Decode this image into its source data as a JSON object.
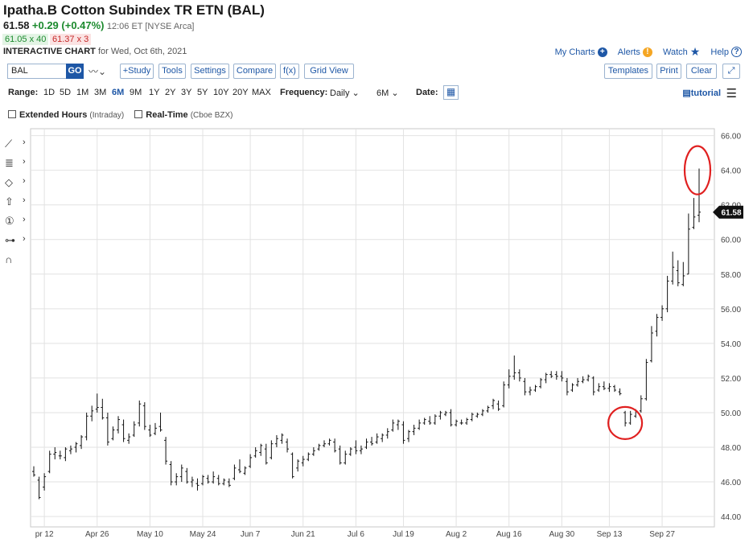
{
  "header": {
    "title": "Ipatha.B Cotton Subindex TR ETN (BAL)",
    "price": "61.58",
    "change": "+0.29 (+0.47%)",
    "time": "12:06 ET [NYSE Arca]",
    "bid": "61.05 x 40",
    "ask": "61.37 x 3",
    "interactive_label": "INTERACTIVE CHART",
    "interactive_date": "for Wed, Oct 6th, 2021"
  },
  "toplinks": {
    "my_charts": "My Charts",
    "alerts": "Alerts",
    "watch": "Watch",
    "help": "Help"
  },
  "toolbar": {
    "symbol": "BAL",
    "go": "GO",
    "study": "+Study",
    "tools": "Tools",
    "settings": "Settings",
    "compare": "Compare",
    "fx": "f(x)",
    "grid_view": "Grid View",
    "templates": "Templates",
    "print": "Print",
    "clear": "Clear"
  },
  "range": {
    "label": "Range:",
    "items": [
      "1D",
      "5D",
      "1M",
      "3M",
      "6M",
      "9M",
      "1Y",
      "2Y",
      "3Y",
      "5Y",
      "10Y",
      "20Y",
      "MAX"
    ],
    "active": "6M",
    "frequency_label": "Frequency:",
    "frequency": "Daily",
    "period": "6M",
    "date_label": "Date:",
    "tutorial": "tutorial"
  },
  "options": {
    "extended": "Extended Hours",
    "extended_note": "(Intraday)",
    "realtime": "Real-Time",
    "realtime_note": "(Cboe BZX)"
  },
  "colors": {
    "accent": "#1e57a6",
    "up": "#1c8a2e",
    "down": "#c62828",
    "annotation": "#e02020"
  },
  "chart_data": {
    "type": "ohlc",
    "ylim": [
      43.4,
      66.4
    ],
    "yticks": [
      "44.00",
      "46.00",
      "48.00",
      "50.00",
      "52.00",
      "54.00",
      "56.00",
      "58.00",
      "60.00",
      "62.00",
      "64.00",
      "66.00"
    ],
    "xticks": [
      "pr 12",
      "Apr 26",
      "May 10",
      "May 24",
      "Jun 7",
      "Jun 21",
      "Jul 6",
      "Jul 19",
      "Aug 2",
      "Aug 16",
      "Aug 30",
      "Sep 13",
      "Sep 27"
    ],
    "last_price": "61.58",
    "grid": true,
    "bars": [
      {
        "date": "Apr 8",
        "o": 46.6,
        "h": 46.9,
        "l": 46.3,
        "c": 46.4
      },
      {
        "date": "Apr 9",
        "o": 46.1,
        "h": 46.3,
        "l": 45.0,
        "c": 45.1
      },
      {
        "date": "Apr 12",
        "o": 45.7,
        "h": 46.5,
        "l": 45.5,
        "c": 46.3
      },
      {
        "date": "Apr 13",
        "o": 46.6,
        "h": 47.8,
        "l": 46.5,
        "c": 47.6
      },
      {
        "date": "Apr 14",
        "o": 47.6,
        "h": 48.0,
        "l": 47.3,
        "c": 47.7
      },
      {
        "date": "Apr 15",
        "o": 47.5,
        "h": 47.8,
        "l": 47.3,
        "c": 47.5
      },
      {
        "date": "Apr 16",
        "o": 47.4,
        "h": 48.0,
        "l": 47.2,
        "c": 47.9
      },
      {
        "date": "Apr 19",
        "o": 47.8,
        "h": 48.1,
        "l": 47.6,
        "c": 47.9
      },
      {
        "date": "Apr 20",
        "o": 48.0,
        "h": 48.3,
        "l": 47.7,
        "c": 48.2
      },
      {
        "date": "Apr 21",
        "o": 48.1,
        "h": 48.7,
        "l": 47.9,
        "c": 48.6
      },
      {
        "date": "Apr 22",
        "o": 48.6,
        "h": 50.0,
        "l": 48.4,
        "c": 49.8
      },
      {
        "date": "Apr 23",
        "o": 49.8,
        "h": 50.4,
        "l": 49.5,
        "c": 50.1
      },
      {
        "date": "Apr 26",
        "o": 50.2,
        "h": 51.1,
        "l": 50.0,
        "c": 50.3
      },
      {
        "date": "Apr 27",
        "o": 50.3,
        "h": 50.8,
        "l": 49.6,
        "c": 49.7
      },
      {
        "date": "Apr 28",
        "o": 49.7,
        "h": 50.0,
        "l": 48.1,
        "c": 48.3
      },
      {
        "date": "Apr 29",
        "o": 48.5,
        "h": 49.2,
        "l": 48.4,
        "c": 49.0
      },
      {
        "date": "Apr 30",
        "o": 49.0,
        "h": 49.8,
        "l": 48.8,
        "c": 49.6
      },
      {
        "date": "May 3",
        "o": 49.3,
        "h": 49.6,
        "l": 48.3,
        "c": 48.5
      },
      {
        "date": "May 4",
        "o": 48.4,
        "h": 48.8,
        "l": 48.2,
        "c": 48.6
      },
      {
        "date": "May 5",
        "o": 48.7,
        "h": 49.5,
        "l": 48.6,
        "c": 49.3
      },
      {
        "date": "May 6",
        "o": 49.4,
        "h": 50.7,
        "l": 49.2,
        "c": 50.5
      },
      {
        "date": "May 7",
        "o": 50.4,
        "h": 50.6,
        "l": 49.0,
        "c": 49.2
      },
      {
        "date": "May 10",
        "o": 49.0,
        "h": 49.3,
        "l": 48.6,
        "c": 48.7
      },
      {
        "date": "May 11",
        "o": 48.8,
        "h": 49.4,
        "l": 48.7,
        "c": 49.1
      },
      {
        "date": "May 12",
        "o": 49.2,
        "h": 50.0,
        "l": 48.9,
        "c": 49.0
      },
      {
        "date": "May 13",
        "o": 48.4,
        "h": 48.6,
        "l": 47.0,
        "c": 47.2
      },
      {
        "date": "May 14",
        "o": 47.0,
        "h": 47.2,
        "l": 45.8,
        "c": 46.0
      },
      {
        "date": "May 17",
        "o": 46.0,
        "h": 46.5,
        "l": 45.8,
        "c": 46.3
      },
      {
        "date": "May 18",
        "o": 46.3,
        "h": 47.0,
        "l": 46.0,
        "c": 46.8
      },
      {
        "date": "May 19",
        "o": 46.6,
        "h": 46.8,
        "l": 45.9,
        "c": 46.0
      },
      {
        "date": "May 20",
        "o": 46.0,
        "h": 46.3,
        "l": 45.7,
        "c": 46.1
      },
      {
        "date": "May 21",
        "o": 45.9,
        "h": 46.2,
        "l": 45.5,
        "c": 45.8
      },
      {
        "date": "May 24",
        "o": 45.9,
        "h": 46.4,
        "l": 45.8,
        "c": 46.3
      },
      {
        "date": "May 25",
        "o": 46.2,
        "h": 46.4,
        "l": 45.9,
        "c": 46.0
      },
      {
        "date": "May 26",
        "o": 46.0,
        "h": 46.6,
        "l": 45.9,
        "c": 46.3
      },
      {
        "date": "May 27",
        "o": 46.2,
        "h": 46.4,
        "l": 45.8,
        "c": 45.9
      },
      {
        "date": "May 28",
        "o": 45.9,
        "h": 46.2,
        "l": 45.8,
        "c": 46.1
      },
      {
        "date": "Jun 1",
        "o": 46.0,
        "h": 46.2,
        "l": 45.7,
        "c": 45.8
      },
      {
        "date": "Jun 2",
        "o": 46.2,
        "h": 47.0,
        "l": 46.1,
        "c": 46.8
      },
      {
        "date": "Jun 3",
        "o": 46.7,
        "h": 47.3,
        "l": 46.5,
        "c": 46.6
      },
      {
        "date": "Jun 4",
        "o": 46.5,
        "h": 46.9,
        "l": 46.4,
        "c": 46.8
      },
      {
        "date": "Jun 7",
        "o": 46.9,
        "h": 47.6,
        "l": 46.8,
        "c": 47.4
      },
      {
        "date": "Jun 8",
        "o": 47.5,
        "h": 48.0,
        "l": 47.4,
        "c": 47.8
      },
      {
        "date": "Jun 9",
        "o": 47.7,
        "h": 48.2,
        "l": 47.5,
        "c": 48.1
      },
      {
        "date": "Jun 10",
        "o": 47.9,
        "h": 48.2,
        "l": 47.0,
        "c": 47.1
      },
      {
        "date": "Jun 11",
        "o": 47.4,
        "h": 48.4,
        "l": 47.3,
        "c": 48.2
      },
      {
        "date": "Jun 14",
        "o": 48.2,
        "h": 48.7,
        "l": 48.0,
        "c": 48.5
      },
      {
        "date": "Jun 15",
        "o": 48.4,
        "h": 48.8,
        "l": 48.2,
        "c": 48.7
      },
      {
        "date": "Jun 16",
        "o": 48.3,
        "h": 48.5,
        "l": 47.7,
        "c": 47.9
      },
      {
        "date": "Jun 17",
        "o": 47.6,
        "h": 47.7,
        "l": 46.2,
        "c": 46.3
      },
      {
        "date": "Jun 18",
        "o": 46.8,
        "h": 47.3,
        "l": 46.6,
        "c": 47.2
      },
      {
        "date": "Jun 21",
        "o": 47.1,
        "h": 47.5,
        "l": 46.9,
        "c": 47.3
      },
      {
        "date": "Jun 22",
        "o": 47.3,
        "h": 47.7,
        "l": 47.2,
        "c": 47.6
      },
      {
        "date": "Jun 23",
        "o": 47.6,
        "h": 48.0,
        "l": 47.5,
        "c": 47.8
      },
      {
        "date": "Jun 24",
        "o": 47.9,
        "h": 48.2,
        "l": 47.8,
        "c": 48.1
      },
      {
        "date": "Jun 25",
        "o": 48.1,
        "h": 48.4,
        "l": 48.0,
        "c": 48.2
      },
      {
        "date": "Jun 28",
        "o": 48.2,
        "h": 48.5,
        "l": 48.1,
        "c": 48.4
      },
      {
        "date": "Jun 29",
        "o": 48.3,
        "h": 48.5,
        "l": 47.7,
        "c": 47.8
      },
      {
        "date": "Jun 30",
        "o": 47.9,
        "h": 48.1,
        "l": 47.0,
        "c": 47.1
      },
      {
        "date": "Jul 1",
        "o": 47.1,
        "h": 47.8,
        "l": 47.0,
        "c": 47.6
      },
      {
        "date": "Jul 2",
        "o": 47.6,
        "h": 48.0,
        "l": 47.5,
        "c": 47.9
      },
      {
        "date": "Jul 6",
        "o": 48.0,
        "h": 48.4,
        "l": 47.6,
        "c": 47.8
      },
      {
        "date": "Jul 7",
        "o": 47.8,
        "h": 48.1,
        "l": 47.6,
        "c": 47.9
      },
      {
        "date": "Jul 8",
        "o": 48.0,
        "h": 48.5,
        "l": 47.9,
        "c": 48.3
      },
      {
        "date": "Jul 9",
        "o": 48.3,
        "h": 48.6,
        "l": 48.1,
        "c": 48.2
      },
      {
        "date": "Jul 12",
        "o": 48.3,
        "h": 48.8,
        "l": 48.2,
        "c": 48.6
      },
      {
        "date": "Jul 13",
        "o": 48.5,
        "h": 48.8,
        "l": 48.3,
        "c": 48.7
      },
      {
        "date": "Jul 14",
        "o": 48.7,
        "h": 49.1,
        "l": 48.5,
        "c": 48.9
      },
      {
        "date": "Jul 15",
        "o": 49.0,
        "h": 49.6,
        "l": 48.9,
        "c": 49.4
      },
      {
        "date": "Jul 16",
        "o": 49.3,
        "h": 49.6,
        "l": 49.0,
        "c": 49.5
      },
      {
        "date": "Jul 19",
        "o": 49.3,
        "h": 49.5,
        "l": 48.2,
        "c": 48.4
      },
      {
        "date": "Jul 20",
        "o": 48.5,
        "h": 49.0,
        "l": 48.3,
        "c": 48.9
      },
      {
        "date": "Jul 21",
        "o": 48.9,
        "h": 49.3,
        "l": 48.7,
        "c": 49.1
      },
      {
        "date": "Jul 22",
        "o": 49.1,
        "h": 49.6,
        "l": 49.0,
        "c": 49.4
      },
      {
        "date": "Jul 23",
        "o": 49.4,
        "h": 49.7,
        "l": 49.3,
        "c": 49.6
      },
      {
        "date": "Jul 26",
        "o": 49.5,
        "h": 49.8,
        "l": 49.3,
        "c": 49.4
      },
      {
        "date": "Jul 27",
        "o": 49.4,
        "h": 49.9,
        "l": 49.3,
        "c": 49.8
      },
      {
        "date": "Jul 28",
        "o": 49.8,
        "h": 50.1,
        "l": 49.6,
        "c": 50.0
      },
      {
        "date": "Jul 29",
        "o": 49.9,
        "h": 50.1,
        "l": 49.8,
        "c": 50.0
      },
      {
        "date": "Jul 30",
        "o": 50.0,
        "h": 50.2,
        "l": 49.2,
        "c": 49.3
      },
      {
        "date": "Aug 2",
        "o": 49.3,
        "h": 49.6,
        "l": 49.2,
        "c": 49.5
      },
      {
        "date": "Aug 3",
        "o": 49.4,
        "h": 49.6,
        "l": 49.3,
        "c": 49.4
      },
      {
        "date": "Aug 4",
        "o": 49.4,
        "h": 49.7,
        "l": 49.3,
        "c": 49.6
      },
      {
        "date": "Aug 5",
        "o": 49.6,
        "h": 50.0,
        "l": 49.5,
        "c": 49.9
      },
      {
        "date": "Aug 6",
        "o": 49.8,
        "h": 50.0,
        "l": 49.7,
        "c": 49.9
      },
      {
        "date": "Aug 9",
        "o": 49.9,
        "h": 50.2,
        "l": 49.8,
        "c": 50.1
      },
      {
        "date": "Aug 10",
        "o": 50.1,
        "h": 50.4,
        "l": 50.0,
        "c": 50.3
      },
      {
        "date": "Aug 11",
        "o": 50.4,
        "h": 50.8,
        "l": 50.2,
        "c": 50.7
      },
      {
        "date": "Aug 12",
        "o": 50.5,
        "h": 50.7,
        "l": 50.1,
        "c": 50.2
      },
      {
        "date": "Aug 13",
        "o": 50.4,
        "h": 51.8,
        "l": 50.3,
        "c": 51.6
      },
      {
        "date": "Aug 16",
        "o": 51.6,
        "h": 52.5,
        "l": 51.4,
        "c": 52.1
      },
      {
        "date": "Aug 17",
        "o": 52.1,
        "h": 53.3,
        "l": 51.9,
        "c": 52.3
      },
      {
        "date": "Aug 18",
        "o": 52.3,
        "h": 52.5,
        "l": 51.8,
        "c": 52.0
      },
      {
        "date": "Aug 19",
        "o": 51.8,
        "h": 52.0,
        "l": 51.0,
        "c": 51.2
      },
      {
        "date": "Aug 20",
        "o": 51.2,
        "h": 51.5,
        "l": 51.0,
        "c": 51.3
      },
      {
        "date": "Aug 23",
        "o": 51.3,
        "h": 51.6,
        "l": 51.2,
        "c": 51.5
      },
      {
        "date": "Aug 24",
        "o": 51.5,
        "h": 52.0,
        "l": 51.4,
        "c": 51.9
      },
      {
        "date": "Aug 25",
        "o": 51.9,
        "h": 52.3,
        "l": 51.7,
        "c": 52.2
      },
      {
        "date": "Aug 26",
        "o": 52.2,
        "h": 52.4,
        "l": 52.0,
        "c": 52.1
      },
      {
        "date": "Aug 27",
        "o": 52.2,
        "h": 52.4,
        "l": 51.9,
        "c": 52.1
      },
      {
        "date": "Aug 30",
        "o": 52.1,
        "h": 52.4,
        "l": 51.8,
        "c": 52.0
      },
      {
        "date": "Aug 31",
        "o": 51.8,
        "h": 52.0,
        "l": 51.0,
        "c": 51.2
      },
      {
        "date": "Sep 1",
        "o": 51.3,
        "h": 51.7,
        "l": 51.2,
        "c": 51.6
      },
      {
        "date": "Sep 2",
        "o": 51.6,
        "h": 52.0,
        "l": 51.5,
        "c": 51.8
      },
      {
        "date": "Sep 3",
        "o": 51.8,
        "h": 52.1,
        "l": 51.7,
        "c": 51.9
      },
      {
        "date": "Sep 7",
        "o": 51.9,
        "h": 52.2,
        "l": 51.8,
        "c": 52.1
      },
      {
        "date": "Sep 8",
        "o": 52.0,
        "h": 52.1,
        "l": 51.0,
        "c": 51.2
      },
      {
        "date": "Sep 9",
        "o": 51.3,
        "h": 51.7,
        "l": 51.2,
        "c": 51.5
      },
      {
        "date": "Sep 10",
        "o": 51.5,
        "h": 51.8,
        "l": 51.3,
        "c": 51.4
      },
      {
        "date": "Sep 13",
        "o": 51.4,
        "h": 51.7,
        "l": 51.2,
        "c": 51.5
      },
      {
        "date": "Sep 14",
        "o": 51.5,
        "h": 51.6,
        "l": 51.2,
        "c": 51.3
      },
      {
        "date": "Sep 15",
        "o": 51.2,
        "h": 51.4,
        "l": 51.0,
        "c": 51.1
      },
      {
        "date": "Sep 16",
        "o": 50.0,
        "h": 50.1,
        "l": 49.2,
        "c": 49.4
      },
      {
        "date": "Sep 17",
        "o": 49.4,
        "h": 50.1,
        "l": 49.3,
        "c": 49.9
      },
      {
        "date": "Sep 20",
        "o": 49.8,
        "h": 50.2,
        "l": 49.7,
        "c": 50.1
      },
      {
        "date": "Sep 21",
        "o": 50.1,
        "h": 51.0,
        "l": 50.0,
        "c": 50.8
      },
      {
        "date": "Sep 22",
        "o": 50.8,
        "h": 53.1,
        "l": 50.7,
        "c": 52.9
      },
      {
        "date": "Sep 23",
        "o": 53.0,
        "h": 55.0,
        "l": 52.9,
        "c": 54.6
      },
      {
        "date": "Sep 24",
        "o": 54.7,
        "h": 55.7,
        "l": 54.4,
        "c": 55.5
      },
      {
        "date": "Sep 27",
        "o": 55.5,
        "h": 56.2,
        "l": 55.3,
        "c": 56.0
      },
      {
        "date": "Sep 28",
        "o": 56.0,
        "h": 57.9,
        "l": 55.8,
        "c": 57.6
      },
      {
        "date": "Sep 29",
        "o": 57.6,
        "h": 59.3,
        "l": 57.4,
        "c": 58.4
      },
      {
        "date": "Sep 30",
        "o": 58.2,
        "h": 58.8,
        "l": 57.3,
        "c": 57.5
      },
      {
        "date": "Oct 1",
        "o": 57.4,
        "h": 58.7,
        "l": 57.3,
        "c": 57.9
      },
      {
        "date": "Oct 4",
        "o": 58.0,
        "h": 61.5,
        "l": 58.0,
        "c": 60.6
      },
      {
        "date": "Oct 5",
        "o": 60.7,
        "h": 62.4,
        "l": 60.6,
        "c": 61.3
      },
      {
        "date": "Oct 6",
        "o": 61.4,
        "h": 64.1,
        "l": 61.0,
        "c": 61.58
      }
    ],
    "annotations": [
      {
        "type": "circle",
        "date": "Sep 16",
        "value": 49.4,
        "color": "#e02020"
      },
      {
        "type": "circle",
        "date": "Oct 6",
        "value": 64.0,
        "color": "#e02020"
      }
    ]
  }
}
